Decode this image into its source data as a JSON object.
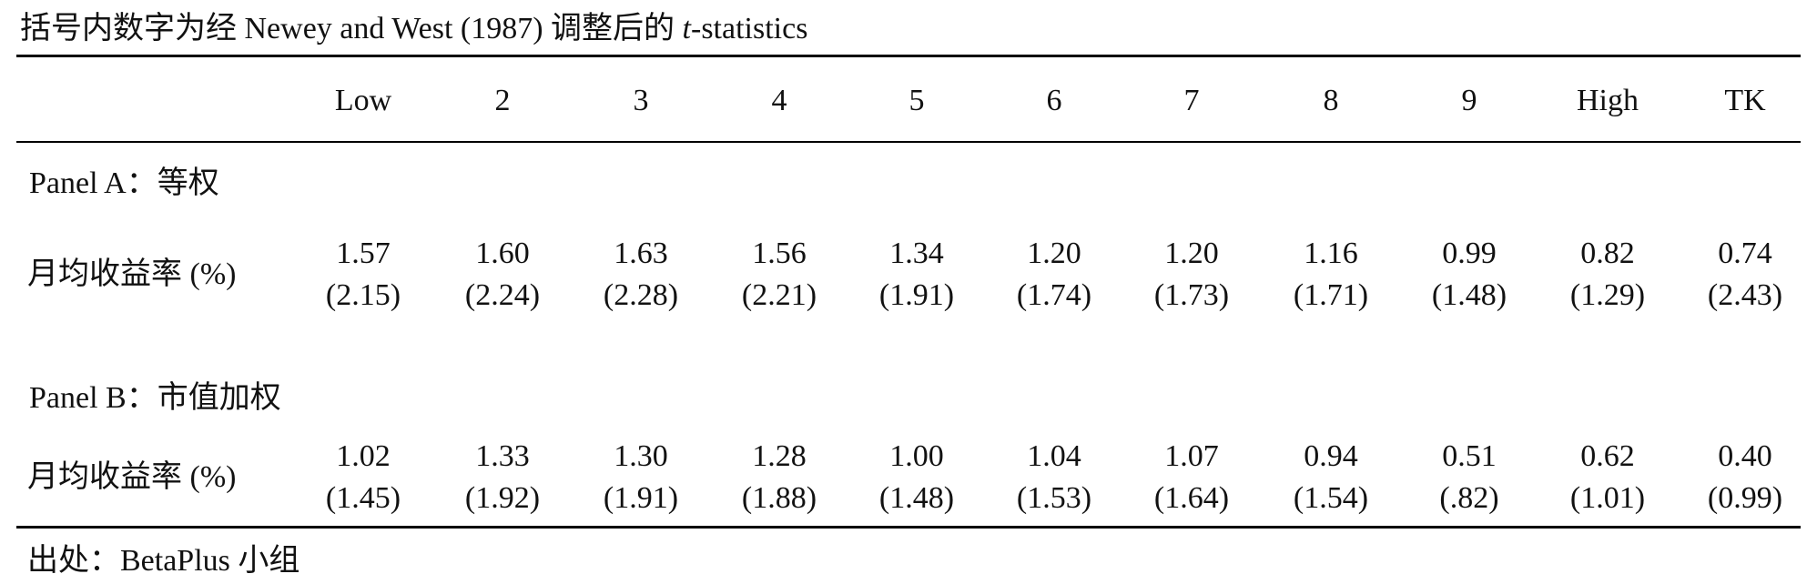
{
  "note": {
    "prefix": "括号内数字为经 Newey and West (1987) 调整后的 ",
    "italic": "t",
    "suffix": "-statistics"
  },
  "table": {
    "columns": [
      "Low",
      "2",
      "3",
      "4",
      "5",
      "6",
      "7",
      "8",
      "9",
      "High",
      "TK"
    ],
    "panels": [
      {
        "title": "Panel A：等权",
        "row_label": "月均收益率 (%)",
        "values": [
          "1.57",
          "1.60",
          "1.63",
          "1.56",
          "1.34",
          "1.20",
          "1.20",
          "1.16",
          "0.99",
          "0.82",
          "0.74"
        ],
        "tstats": [
          "(2.15)",
          "(2.24)",
          "(2.28)",
          "(2.21)",
          "(1.91)",
          "(1.74)",
          "(1.73)",
          "(1.71)",
          "(1.48)",
          "(1.29)",
          "(2.43)"
        ]
      },
      {
        "title": "Panel B：市值加权",
        "row_label": "月均收益率 (%)",
        "values": [
          "1.02",
          "1.33",
          "1.30",
          "1.28",
          "1.00",
          "1.04",
          "1.07",
          "0.94",
          "0.51",
          "0.62",
          "0.40"
        ],
        "tstats": [
          "(1.45)",
          "(1.92)",
          "(1.91)",
          "(1.88)",
          "(1.48)",
          "(1.53)",
          "(1.64)",
          "(1.54)",
          "(.82)",
          "(1.01)",
          "(0.99)"
        ]
      }
    ]
  },
  "source": "出处：BetaPlus 小组"
}
